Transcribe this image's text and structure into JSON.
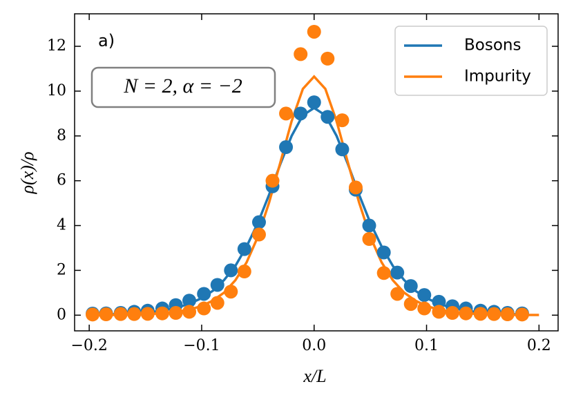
{
  "chart_data": {
    "type": "line",
    "annotation": "a)",
    "box_text": "N = 2, α = −2",
    "xlabel": "x/L",
    "ylabel": "ρ(x)/ρ",
    "xlim": [
      -0.213,
      0.217
    ],
    "ylim": [
      -0.7,
      13.45
    ],
    "xticks": [
      {
        "value": -0.2,
        "label": "−0.2"
      },
      {
        "value": -0.1,
        "label": "−0.1"
      },
      {
        "value": 0.0,
        "label": "0.0"
      },
      {
        "value": 0.1,
        "label": "0.1"
      },
      {
        "value": 0.2,
        "label": "0.2"
      }
    ],
    "yticks": [
      0,
      2,
      4,
      6,
      8,
      10,
      12
    ],
    "legend": "upper right",
    "series": [
      {
        "name": "Bosons",
        "color": "#1f77b4",
        "x": [
          -0.2,
          -0.19,
          -0.18,
          -0.17,
          -0.16,
          -0.15,
          -0.14,
          -0.13,
          -0.12,
          -0.11,
          -0.1,
          -0.09,
          -0.08,
          -0.07,
          -0.06,
          -0.05,
          -0.04,
          -0.03,
          -0.02,
          -0.01,
          0,
          0.01,
          0.02,
          0.03,
          0.04,
          0.05,
          0.06,
          0.07,
          0.08,
          0.09,
          0.1,
          0.11,
          0.12,
          0.13,
          0.14,
          0.15,
          0.16,
          0.17,
          0.18,
          0.19
        ],
        "values": [
          0.02,
          0.03,
          0.04,
          0.05,
          0.08,
          0.11,
          0.17,
          0.25,
          0.36,
          0.53,
          0.76,
          1.09,
          1.57,
          2.2,
          3.07,
          4.12,
          5.38,
          6.75,
          8.0,
          8.92,
          9.25,
          8.92,
          8.0,
          6.75,
          5.38,
          4.12,
          3.07,
          2.2,
          1.57,
          1.09,
          0.76,
          0.53,
          0.36,
          0.25,
          0.17,
          0.11,
          0.08,
          0.05,
          0.04,
          0.03
        ]
      },
      {
        "name": "Impurity",
        "color": "#ff7f0e",
        "x": [
          -0.2,
          -0.19,
          -0.18,
          -0.17,
          -0.16,
          -0.15,
          -0.14,
          -0.13,
          -0.12,
          -0.11,
          -0.1,
          -0.09,
          -0.08,
          -0.07,
          -0.06,
          -0.05,
          -0.04,
          -0.03,
          -0.02,
          -0.01,
          0,
          0.01,
          0.02,
          0.03,
          0.04,
          0.05,
          0.06,
          0.07,
          0.08,
          0.09,
          0.1,
          0.11,
          0.12,
          0.13,
          0.14,
          0.15,
          0.16,
          0.17,
          0.18,
          0.19,
          0.2
        ],
        "values": [
          0.01,
          0.01,
          0.01,
          0.02,
          0.03,
          0.04,
          0.07,
          0.1,
          0.17,
          0.26,
          0.41,
          0.65,
          1.01,
          1.56,
          2.36,
          3.5,
          5.03,
          6.82,
          8.66,
          10.1,
          10.65,
          10.1,
          8.66,
          6.82,
          5.03,
          3.5,
          2.36,
          1.56,
          1.01,
          0.65,
          0.41,
          0.26,
          0.17,
          0.1,
          0.07,
          0.04,
          0.03,
          0.02,
          0.01,
          0.01,
          0.01
        ]
      }
    ],
    "points": [
      {
        "color": "#1f77b4",
        "x": [
          -0.197,
          -0.185,
          -0.172,
          -0.16,
          -0.148,
          -0.135,
          -0.123,
          -0.111,
          -0.098,
          -0.086,
          -0.074,
          -0.062,
          -0.049,
          -0.037,
          -0.025,
          -0.012,
          0,
          0.012,
          0.025,
          0.037,
          0.049,
          0.062,
          0.074,
          0.086,
          0.098,
          0.111,
          0.123,
          0.135,
          0.148,
          0.16,
          0.172,
          0.185
        ],
        "values": [
          0.07,
          0.08,
          0.1,
          0.15,
          0.2,
          0.3,
          0.45,
          0.65,
          0.95,
          1.35,
          2.0,
          2.95,
          4.15,
          5.75,
          7.5,
          9.0,
          9.5,
          8.85,
          7.4,
          5.6,
          4.0,
          2.8,
          1.9,
          1.3,
          0.9,
          0.6,
          0.4,
          0.3,
          0.2,
          0.15,
          0.1,
          0.08
        ]
      },
      {
        "color": "#ff7f0e",
        "x": [
          -0.197,
          -0.185,
          -0.172,
          -0.16,
          -0.148,
          -0.135,
          -0.123,
          -0.111,
          -0.098,
          -0.086,
          -0.074,
          -0.062,
          -0.049,
          -0.037,
          -0.025,
          -0.012,
          0,
          0.012,
          0.025,
          0.037,
          0.049,
          0.062,
          0.074,
          0.086,
          0.098,
          0.111,
          0.123,
          0.135,
          0.148,
          0.16,
          0.172,
          0.185
        ],
        "values": [
          0.03,
          0.04,
          0.05,
          0.05,
          0.06,
          0.08,
          0.1,
          0.15,
          0.3,
          0.55,
          1.05,
          1.95,
          3.6,
          6.0,
          9.0,
          11.65,
          12.65,
          11.45,
          8.7,
          5.7,
          3.4,
          1.88,
          0.95,
          0.5,
          0.3,
          0.15,
          0.1,
          0.08,
          0.06,
          0.05,
          0.04,
          0.03
        ]
      }
    ]
  }
}
